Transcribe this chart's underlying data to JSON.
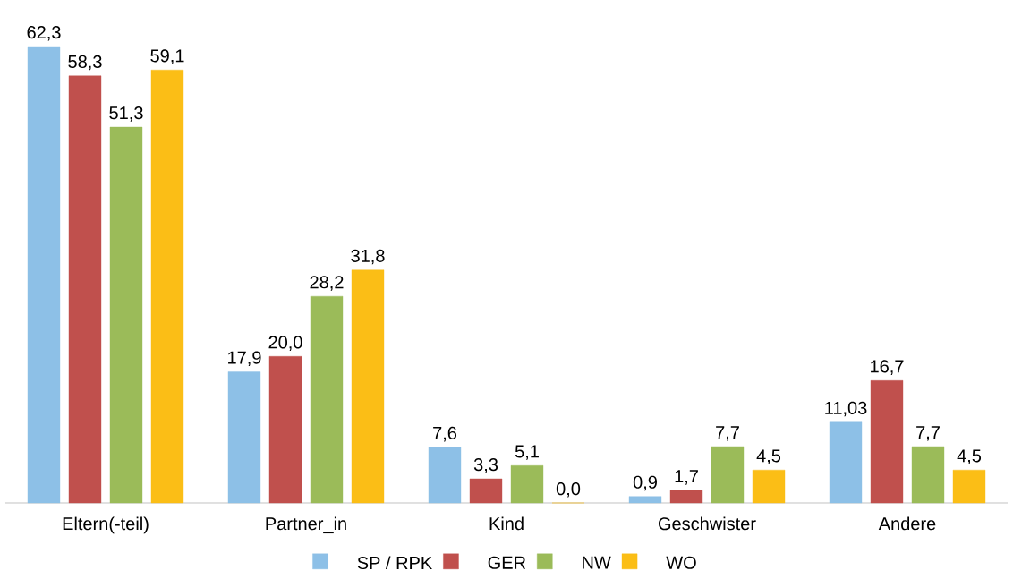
{
  "chart_data": {
    "type": "bar",
    "categories": [
      "Eltern(-teil)",
      "Partner_in",
      "Kind",
      "Geschwister",
      "Andere"
    ],
    "series": [
      {
        "name": "SP / RPK",
        "color": "#8dc0e7",
        "values": [
          62.3,
          17.9,
          7.6,
          0.9,
          11.03
        ],
        "value_labels": [
          "62,3",
          "17,9",
          "7,6",
          "0,9",
          "11,03"
        ]
      },
      {
        "name": "GER",
        "color": "#c0504d",
        "values": [
          58.3,
          20.0,
          3.3,
          1.7,
          16.7
        ],
        "value_labels": [
          "58,3",
          "20,0",
          "3,3",
          "1,7",
          "16,7"
        ]
      },
      {
        "name": "NW",
        "color": "#9bbb59",
        "values": [
          51.3,
          28.2,
          5.1,
          7.7,
          7.7
        ],
        "value_labels": [
          "51,3",
          "28,2",
          "5,1",
          "7,7",
          "7,7"
        ]
      },
      {
        "name": "WO",
        "color": "#fbbe16",
        "values": [
          59.1,
          31.8,
          0.0,
          4.5,
          4.5
        ],
        "value_labels": [
          "59,1",
          "31,8",
          "0,0",
          "4,5",
          "4,5"
        ]
      }
    ],
    "legend": "bottom"
  }
}
